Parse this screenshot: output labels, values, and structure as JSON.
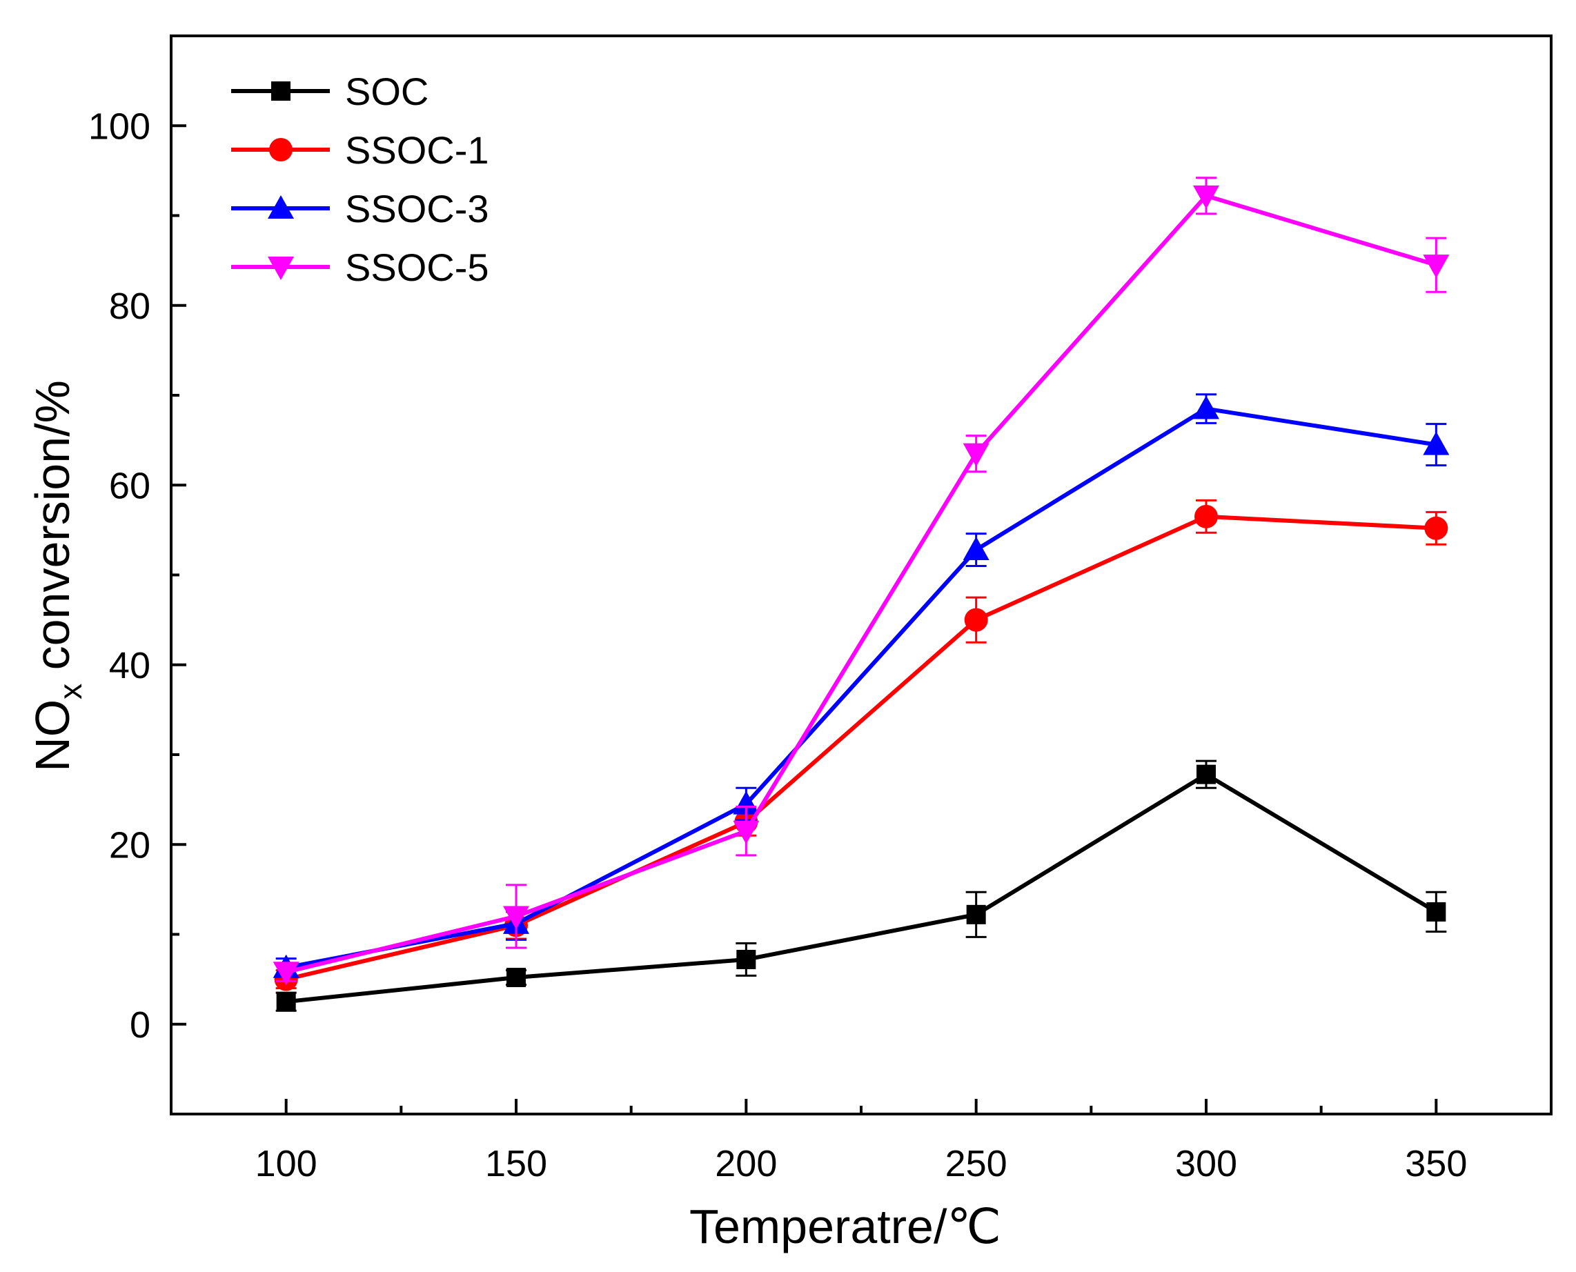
{
  "chart_data": {
    "type": "line",
    "xlabel": "Temperatre/℃",
    "ylabel_main": "NO",
    "ylabel_sub": "x",
    "ylabel_rest": " conversion/%",
    "xlim": [
      75,
      375
    ],
    "ylim": [
      -10,
      110
    ],
    "x": [
      100,
      150,
      200,
      250,
      300,
      350
    ],
    "x_ticks": [
      100,
      150,
      200,
      250,
      300,
      350
    ],
    "x_tick_labels": [
      "100",
      "150",
      "200",
      "250",
      "300",
      "350"
    ],
    "x_minor_ticks": [
      125,
      175,
      225,
      275,
      325
    ],
    "y_ticks": [
      0,
      20,
      40,
      60,
      80,
      100
    ],
    "y_tick_labels": [
      "0",
      "20",
      "40",
      "60",
      "80",
      "100"
    ],
    "y_minor_ticks": [
      10,
      30,
      50,
      70,
      90
    ],
    "legend_position": "top-left",
    "series": [
      {
        "name": "SOC",
        "color": "#000000",
        "marker": "square",
        "values": [
          2.5,
          5.2,
          7.2,
          12.2,
          27.8,
          12.5
        ],
        "errors": [
          1.0,
          0.8,
          1.8,
          2.5,
          1.5,
          2.2
        ]
      },
      {
        "name": "SSOC-1",
        "color": "#ff0000",
        "marker": "circle",
        "values": [
          5.0,
          11.0,
          22.5,
          45.0,
          56.5,
          55.2
        ],
        "errors": [
          1.0,
          1.5,
          1.5,
          2.5,
          1.8,
          1.8
        ]
      },
      {
        "name": "SSOC-3",
        "color": "#0000ff",
        "marker": "triangle-up",
        "values": [
          6.3,
          11.2,
          24.5,
          52.8,
          68.5,
          64.5
        ],
        "errors": [
          1.0,
          1.8,
          1.8,
          1.8,
          1.6,
          2.3
        ]
      },
      {
        "name": "SSOC-5",
        "color": "#ff00ff",
        "marker": "triangle-down",
        "values": [
          5.8,
          12.0,
          21.5,
          63.5,
          92.2,
          84.5
        ],
        "errors": [
          1.0,
          3.5,
          2.7,
          2.0,
          2.0,
          3.0
        ]
      }
    ]
  }
}
